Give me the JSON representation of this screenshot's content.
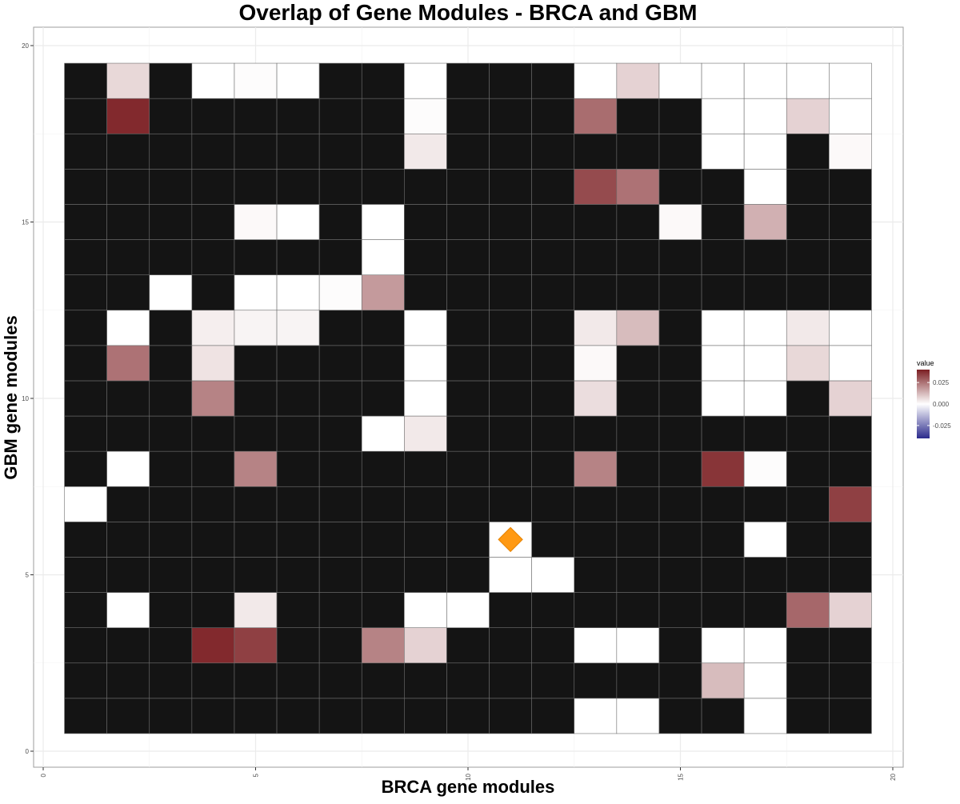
{
  "chart_data": {
    "type": "heatmap",
    "title": "Overlap of Gene Modules - BRCA and GBM",
    "xlabel": "BRCA gene modules",
    "ylabel": "GBM gene modules",
    "xlim": [
      0,
      20
    ],
    "ylim": [
      0,
      20
    ],
    "x_ticks": [
      "0",
      "5",
      "10",
      "15",
      "20"
    ],
    "y_ticks": [
      "0",
      "5",
      "10",
      "15",
      "20"
    ],
    "x_categories": [
      1,
      2,
      3,
      4,
      5,
      6,
      7,
      8,
      9,
      10,
      11,
      12,
      13,
      14,
      15,
      16,
      17,
      18,
      19
    ],
    "y_categories": [
      1,
      2,
      3,
      4,
      5,
      6,
      7,
      8,
      9,
      10,
      11,
      12,
      13,
      14,
      15,
      16,
      17,
      18,
      19
    ],
    "na_color": "#141414",
    "grid": true,
    "legend": {
      "title": "value",
      "position": "right",
      "labels": [
        "0.025",
        "0.000",
        "-0.025"
      ],
      "label_values": [
        0.025,
        0.0,
        -0.025
      ],
      "range": [
        -0.04,
        0.04
      ],
      "low_color": "#2b2a8c",
      "mid_color": "#ffffff",
      "high_color": "#7b1e22"
    },
    "values": [
      [
        null,
        null,
        null,
        null,
        null,
        null,
        null,
        null,
        null,
        null,
        null,
        null,
        0.0,
        0.0,
        null,
        null,
        0.0,
        null,
        null
      ],
      [
        null,
        null,
        null,
        null,
        null,
        null,
        null,
        null,
        null,
        null,
        null,
        null,
        null,
        null,
        null,
        0.012,
        0.0,
        null,
        null
      ],
      [
        null,
        null,
        null,
        0.038,
        0.034,
        null,
        null,
        0.022,
        0.008,
        null,
        null,
        null,
        0.0,
        0.0,
        null,
        0.0,
        0.0,
        null,
        null
      ],
      [
        null,
        0.0,
        null,
        null,
        0.004,
        null,
        null,
        null,
        0.0,
        0.0,
        null,
        null,
        null,
        null,
        null,
        null,
        null,
        0.027,
        0.008
      ],
      [
        null,
        null,
        null,
        null,
        null,
        null,
        null,
        null,
        null,
        null,
        0.0,
        0.0,
        null,
        null,
        null,
        null,
        null,
        null,
        null
      ],
      [
        null,
        null,
        null,
        null,
        null,
        null,
        null,
        null,
        null,
        null,
        0.0,
        null,
        null,
        null,
        null,
        null,
        0.0,
        null,
        null
      ],
      [
        0.0,
        null,
        null,
        null,
        null,
        null,
        null,
        null,
        null,
        null,
        null,
        null,
        null,
        null,
        null,
        null,
        null,
        null,
        0.034
      ],
      [
        null,
        0.0,
        null,
        null,
        0.022,
        null,
        null,
        null,
        null,
        null,
        null,
        null,
        0.022,
        null,
        null,
        0.036,
        0.0005,
        null,
        null
      ],
      [
        null,
        null,
        null,
        null,
        null,
        null,
        null,
        0.0,
        0.004,
        null,
        null,
        null,
        null,
        null,
        null,
        null,
        null,
        null,
        null
      ],
      [
        null,
        null,
        null,
        0.022,
        null,
        null,
        null,
        null,
        0.0,
        null,
        null,
        null,
        0.006,
        null,
        null,
        0.0,
        0.0,
        null,
        0.008
      ],
      [
        null,
        0.025,
        null,
        0.005,
        null,
        null,
        null,
        null,
        0.0,
        null,
        null,
        null,
        0.001,
        null,
        null,
        0.0,
        0.0,
        0.007,
        0.0
      ],
      [
        null,
        0.0,
        null,
        0.003,
        0.002,
        0.002,
        null,
        null,
        0.0,
        null,
        null,
        null,
        0.004,
        0.012,
        null,
        0.0,
        0.0,
        0.004,
        0.0
      ],
      [
        null,
        null,
        0.0,
        null,
        0.0,
        0.0,
        0.0005,
        0.018,
        null,
        null,
        null,
        null,
        null,
        null,
        null,
        null,
        null,
        null,
        null
      ],
      [
        null,
        null,
        null,
        null,
        null,
        null,
        null,
        0.0,
        null,
        null,
        null,
        null,
        null,
        null,
        null,
        null,
        null,
        null,
        null
      ],
      [
        null,
        null,
        null,
        null,
        0.001,
        0.0,
        null,
        0.0,
        null,
        null,
        null,
        null,
        null,
        null,
        0.001,
        null,
        0.014,
        null,
        null
      ],
      [
        null,
        null,
        null,
        null,
        null,
        null,
        null,
        null,
        null,
        null,
        null,
        null,
        0.032,
        0.025,
        null,
        null,
        0.0,
        null,
        null
      ],
      [
        null,
        null,
        null,
        null,
        null,
        null,
        null,
        null,
        0.004,
        null,
        null,
        null,
        null,
        null,
        null,
        0.0,
        0.0,
        null,
        0.001
      ],
      [
        null,
        0.038,
        null,
        null,
        null,
        null,
        null,
        null,
        0.0005,
        null,
        null,
        null,
        0.026,
        null,
        null,
        0.0,
        0.0,
        0.008,
        0.0
      ],
      [
        null,
        0.007,
        null,
        0.0,
        0.0005,
        0.0,
        null,
        null,
        0.0,
        null,
        null,
        null,
        0.0,
        0.008,
        0.0,
        0.0,
        0.0,
        0.0,
        0.0
      ]
    ],
    "marker": {
      "shape": "diamond",
      "x": 11,
      "y": 6,
      "color": "#ff9913"
    }
  }
}
